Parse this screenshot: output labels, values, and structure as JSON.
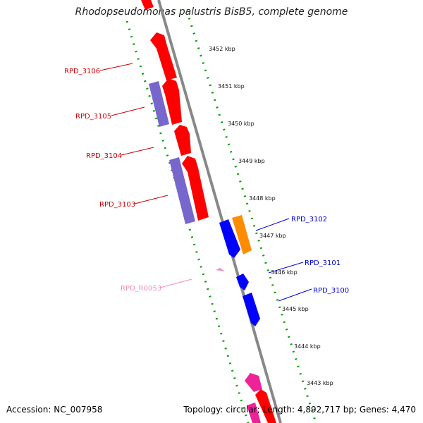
{
  "title": "Rhodopseudomonas palustris BisB5, complete genome",
  "footer": {
    "accession": "Accession: NC_007958",
    "stats": "Topology: circular; Length: 4,892,717 bp; Genes: 4,470"
  },
  "ticks": [
    {
      "label": "3452 kbp"
    },
    {
      "label": "3451 kbp"
    },
    {
      "label": "3450 kbp"
    },
    {
      "label": "3449 kbp"
    },
    {
      "label": "3448 kbp"
    },
    {
      "label": "3447 kbp"
    },
    {
      "label": "3446 kbp"
    },
    {
      "label": "3445 kbp"
    },
    {
      "label": "3444 kbp"
    },
    {
      "label": "3443 kbp"
    }
  ],
  "gene_labels": [
    {
      "label": "RPD_3106",
      "color": "#cc0000"
    },
    {
      "label": "RPD_3105",
      "color": "#cc0000"
    },
    {
      "label": "RPD_3104",
      "color": "#cc0000"
    },
    {
      "label": "RPD_3103",
      "color": "#cc0000"
    },
    {
      "label": "RPD_R0053",
      "color": "#f08cbf"
    },
    {
      "label": "RPD_3102",
      "color": "#0000cc"
    },
    {
      "label": "RPD_3101",
      "color": "#0000cc"
    },
    {
      "label": "RPD_3100",
      "color": "#0000cc"
    }
  ],
  "colors": {
    "cds_forward": "#ff0000",
    "cds_reverse": "#0000ff",
    "pseudo_purple": "#7766cc",
    "orange": "#ff8c00",
    "rna_pink": "#f08cbf",
    "magenta": "#ee2299",
    "backbone": "#888888",
    "tick_green": "#00a000"
  }
}
